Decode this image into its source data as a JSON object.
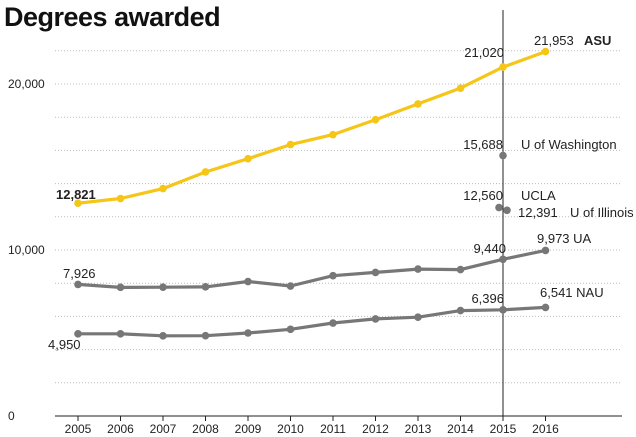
{
  "chart_data": {
    "type": "line",
    "title": "Degrees awarded",
    "xlabel": "",
    "ylabel": "",
    "x": [
      "2005",
      "2006",
      "2007",
      "2008",
      "2009",
      "2010",
      "2011",
      "2012",
      "2013",
      "2014",
      "2015",
      "2016"
    ],
    "y_ticks": [
      "0",
      "10,000",
      "20,000"
    ],
    "ylim": [
      0,
      22000
    ],
    "grid": "dotted horizontal",
    "highlight_year": "2015",
    "colors": {
      "ASU": "#f5c518",
      "other": "#777777",
      "axis": "#222222",
      "grid": "#bbbbbb"
    },
    "series": [
      {
        "name": "ASU",
        "color": "#f5c518",
        "values": [
          12821,
          13100,
          13700,
          14700,
          15500,
          16350,
          16950,
          17850,
          18800,
          19750,
          21020,
          21953
        ]
      },
      {
        "name": "UA",
        "color": "#777777",
        "values": [
          7926,
          7750,
          7760,
          7780,
          8100,
          7830,
          8450,
          8650,
          8850,
          8820,
          9440,
          9973
        ]
      },
      {
        "name": "NAU",
        "color": "#777777",
        "values": [
          4950,
          4950,
          4830,
          4840,
          5000,
          5220,
          5600,
          5850,
          5950,
          6350,
          6396,
          6541
        ]
      }
    ],
    "points_2015": [
      {
        "name": "U of Washington",
        "value": 15688
      },
      {
        "name": "UCLA",
        "value": 12560
      },
      {
        "name": "U of Illinois",
        "value": 12391
      }
    ],
    "annotations": [
      {
        "text": "12,821"
      },
      {
        "text": "21,020"
      },
      {
        "text": "21,953"
      },
      {
        "text": "ASU"
      },
      {
        "text": "7,926"
      },
      {
        "text": "9,440"
      },
      {
        "text": "9,973 UA"
      },
      {
        "text": "4,950"
      },
      {
        "text": "6,396"
      },
      {
        "text": "6,541 NAU"
      },
      {
        "text": "15,688"
      },
      {
        "text": "U of Washington"
      },
      {
        "text": "12,560"
      },
      {
        "text": "UCLA"
      },
      {
        "text": "12,391"
      },
      {
        "text": "U of Illinois"
      }
    ]
  }
}
